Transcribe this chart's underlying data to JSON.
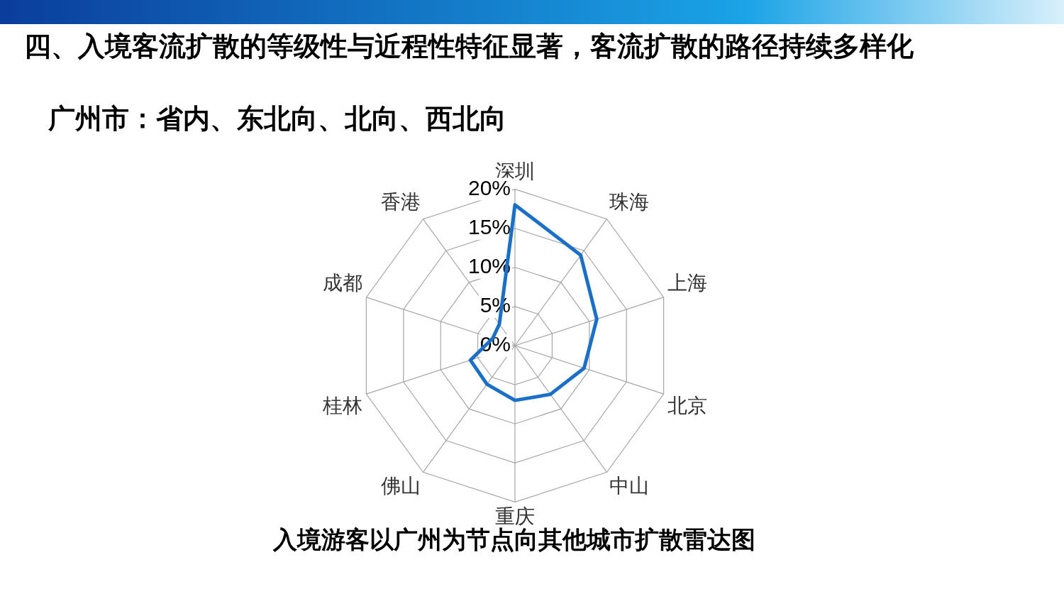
{
  "chart_data": {
    "type": "radar",
    "title": "四、入境客流扩散的等级性与近程性特征显著，客流扩散的路径持续多样化",
    "subtitle": "广州市：省内、东北向、北向、西北向",
    "categories": [
      "深圳",
      "珠海",
      "上海",
      "北京",
      "中山",
      "重庆",
      "佛山",
      "桂林",
      "成都",
      "香港"
    ],
    "series": [
      {
        "color": "#1a6fc9",
        "values": [
          18,
          14.3,
          11,
          9.3,
          7.7,
          7,
          6.1,
          6,
          3,
          3.4
        ]
      }
    ],
    "ylim": [
      0,
      20
    ],
    "yticks": [
      {
        "value": 0,
        "label": "0%"
      },
      {
        "value": 5,
        "label": "5%"
      },
      {
        "value": 10,
        "label": "10%"
      },
      {
        "value": 15,
        "label": "15%"
      },
      {
        "value": 20,
        "label": "20%"
      }
    ],
    "grid": true,
    "legend": false,
    "marker": "none",
    "line_style": "solid",
    "annotations": [
      "入境游客以广州为节点向其他城市扩散雷达图"
    ]
  }
}
